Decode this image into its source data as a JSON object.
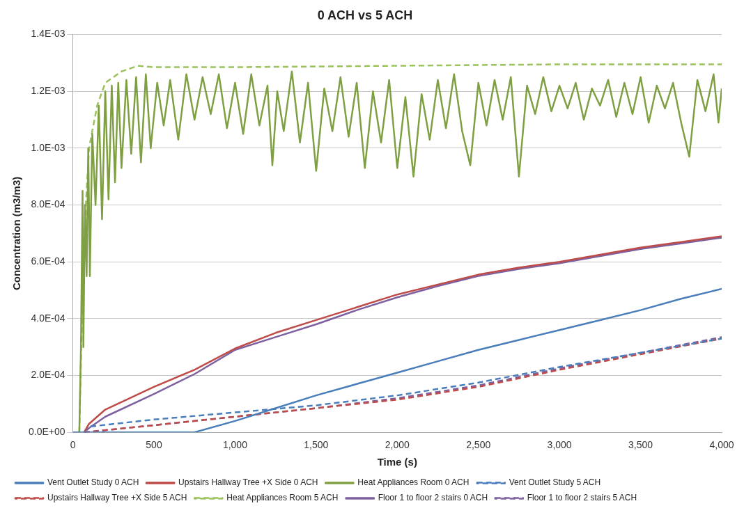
{
  "chart_data": {
    "type": "line",
    "title": "0 ACH vs 5 ACH",
    "xlabel": "Time (s)",
    "ylabel": "Concentration (m3/m3)",
    "xlim": [
      0,
      4000
    ],
    "xticks": [
      0,
      500,
      {
        "value": 1000,
        "label": "1,000"
      },
      {
        "value": 1500,
        "label": "1,500"
      },
      {
        "value": 2000,
        "label": "2,000"
      },
      {
        "value": 2500,
        "label": "2,500"
      },
      {
        "value": 3000,
        "label": "3,000"
      },
      {
        "value": 3500,
        "label": "3,500"
      },
      {
        "value": 4000,
        "label": "4,000"
      }
    ],
    "ylim": [
      0,
      0.0014
    ],
    "yticks": [
      {
        "value": 0,
        "label": "0.0E+00"
      },
      {
        "value": 0.0002,
        "label": "2.0E-04"
      },
      {
        "value": 0.0004,
        "label": "4.0E-04"
      },
      {
        "value": 0.0006,
        "label": "6.0E-04"
      },
      {
        "value": 0.0008,
        "label": "8.0E-04"
      },
      {
        "value": 0.001,
        "label": "1.0E-03"
      },
      {
        "value": 0.0012,
        "label": "1.2E-03"
      },
      {
        "value": 0.0014,
        "label": "1.4E-03"
      }
    ],
    "grid": "y",
    "legend": "bottom",
    "marker": "none",
    "series": [
      {
        "name": "Vent Outlet Study 0 ACH",
        "color": "#4a7ebb",
        "line_style": "solid",
        "x": [
          0,
          750,
          1000,
          1250,
          1500,
          1750,
          2000,
          2250,
          2500,
          2750,
          3000,
          3250,
          3500,
          3750,
          4000
        ],
        "values": [
          0,
          0,
          4e-05,
          8.5e-05,
          0.00013,
          0.00017,
          0.00021,
          0.00025,
          0.00029,
          0.000325,
          0.00036,
          0.000395,
          0.00043,
          0.00047,
          0.000505
        ]
      },
      {
        "name": "Upstairs Hallway Tree +X Side 0 ACH",
        "color": "#be4b48",
        "line_style": "solid",
        "x": [
          70,
          100,
          200,
          500,
          750,
          1000,
          1250,
          1500,
          1750,
          2000,
          2250,
          2500,
          2750,
          3000,
          3250,
          3500,
          3750,
          4000
        ],
        "values": [
          0,
          3e-05,
          8e-05,
          0.00016,
          0.00022,
          0.000295,
          0.00035,
          0.000395,
          0.00044,
          0.000485,
          0.00052,
          0.000555,
          0.00058,
          0.0006,
          0.000625,
          0.00065,
          0.00067,
          0.00069
        ]
      },
      {
        "name": "Heat Appliances Room 0 ACH",
        "color": "#7fa042",
        "line_style": "solid",
        "x": [
          40,
          50,
          60,
          65,
          75,
          85,
          95,
          105,
          120,
          140,
          160,
          180,
          200,
          220,
          240,
          260,
          280,
          300,
          330,
          360,
          390,
          420,
          450,
          480,
          520,
          560,
          600,
          650,
          700,
          750,
          800,
          850,
          900,
          950,
          1000,
          1050,
          1100,
          1150,
          1200,
          1230,
          1260,
          1300,
          1350,
          1400,
          1450,
          1500,
          1550,
          1600,
          1650,
          1700,
          1750,
          1800,
          1850,
          1900,
          1950,
          2000,
          2050,
          2100,
          2150,
          2200,
          2250,
          2300,
          2350,
          2400,
          2450,
          2500,
          2550,
          2600,
          2650,
          2700,
          2750,
          2800,
          2850,
          2900,
          2950,
          3000,
          3050,
          3100,
          3150,
          3200,
          3250,
          3300,
          3350,
          3400,
          3450,
          3500,
          3550,
          3600,
          3650,
          3700,
          3750,
          3800,
          3850,
          3900,
          3950,
          3980,
          4000
        ],
        "values": [
          0,
          0.0003,
          0.00085,
          0.0003,
          0.0008,
          0.00055,
          0.001,
          0.00055,
          0.00105,
          0.0008,
          0.00115,
          0.00075,
          0.0012,
          0.00082,
          0.00122,
          0.00088,
          0.00123,
          0.00093,
          0.00124,
          0.00098,
          0.00125,
          0.00095,
          0.00126,
          0.001,
          0.00123,
          0.00108,
          0.00124,
          0.00103,
          0.00126,
          0.0011,
          0.00125,
          0.00112,
          0.00126,
          0.00107,
          0.00123,
          0.00105,
          0.00126,
          0.00108,
          0.00122,
          0.00094,
          0.0012,
          0.00106,
          0.00127,
          0.00102,
          0.00123,
          0.00092,
          0.00121,
          0.00106,
          0.00125,
          0.00104,
          0.00123,
          0.00093,
          0.0012,
          0.00102,
          0.00124,
          0.00093,
          0.00118,
          0.0009,
          0.00119,
          0.00103,
          0.00124,
          0.00107,
          0.00126,
          0.00106,
          0.00094,
          0.00123,
          0.00108,
          0.00124,
          0.0011,
          0.00125,
          0.0009,
          0.00122,
          0.00112,
          0.00125,
          0.00113,
          0.00122,
          0.00114,
          0.00123,
          0.0011,
          0.00121,
          0.00115,
          0.00124,
          0.00111,
          0.00123,
          0.00112,
          0.00125,
          0.00109,
          0.00122,
          0.00114,
          0.00123,
          0.00109,
          0.00097,
          0.00124,
          0.00113,
          0.00126,
          0.00109,
          0.00121
        ]
      },
      {
        "name": "Vent Outlet Study 5 ACH",
        "color": "#4a7ebb",
        "line_style": "dashed",
        "x": [
          70,
          100,
          500,
          1000,
          1500,
          2000,
          2500,
          3000,
          3500,
          4000
        ],
        "values": [
          0,
          2e-05,
          4.5e-05,
          7e-05,
          9.5e-05,
          0.00013,
          0.000175,
          0.00023,
          0.00028,
          0.00033
        ]
      },
      {
        "name": "Upstairs Hallway Tree +X Side 5 ACH",
        "color": "#be4b48",
        "line_style": "dashed",
        "x": [
          70,
          500,
          1000,
          1500,
          2000,
          2500,
          3000,
          3500,
          4000
        ],
        "values": [
          0,
          2.5e-05,
          5.5e-05,
          8.5e-05,
          0.000115,
          0.00016,
          0.00022,
          0.000275,
          0.00033
        ]
      },
      {
        "name": "Heat Appliances Room 5 ACH",
        "color": "#9bc25b",
        "line_style": "dashed",
        "x": [
          40,
          60,
          80,
          100,
          150,
          200,
          300,
          400,
          500,
          1000,
          2000,
          3000,
          4000
        ],
        "values": [
          0,
          0.0005,
          0.0008,
          0.001,
          0.00115,
          0.00123,
          0.00127,
          0.00129,
          0.001285,
          0.001285,
          0.00129,
          0.001295,
          0.001295
        ]
      },
      {
        "name": "Floor 1 to floor 2 stairs 0 ACH",
        "color": "#7d60a0",
        "line_style": "solid",
        "x": [
          70,
          100,
          200,
          500,
          750,
          1000,
          1250,
          1500,
          1750,
          2000,
          2250,
          2500,
          2750,
          3000,
          3250,
          3500,
          3750,
          4000
        ],
        "values": [
          0,
          1.5e-05,
          5.5e-05,
          0.000135,
          0.000205,
          0.00029,
          0.000335,
          0.00038,
          0.00043,
          0.000475,
          0.000515,
          0.00055,
          0.000575,
          0.000595,
          0.00062,
          0.000645,
          0.000665,
          0.000685
        ]
      },
      {
        "name": "Floor 1 to floor 2 stairs 5 ACH",
        "color": "#7d60a0",
        "line_style": "dashed",
        "x": [
          70,
          500,
          1000,
          1500,
          2000,
          2500,
          3000,
          3500,
          4000
        ],
        "values": [
          0,
          2.5e-05,
          5.5e-05,
          8.5e-05,
          0.00012,
          0.000165,
          0.000225,
          0.00028,
          0.000335
        ]
      }
    ]
  }
}
